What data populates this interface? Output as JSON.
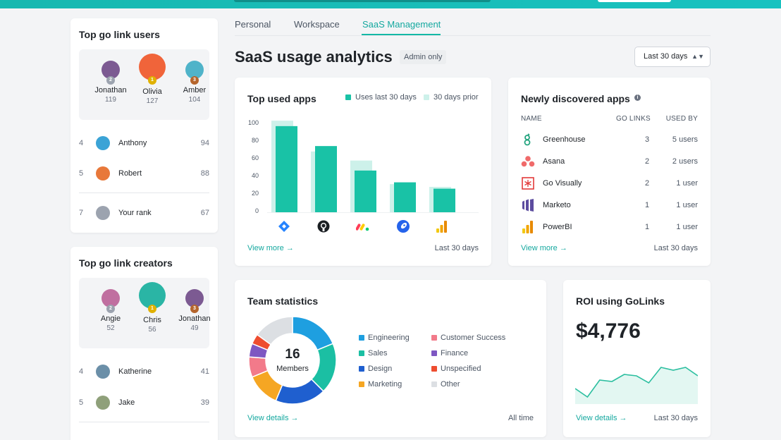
{
  "left": {
    "users": {
      "title": "Top go link users",
      "podium": [
        {
          "name": "Jonathan",
          "count": "119",
          "medal_color": "#9ca3af",
          "avatar_color": "#7c5a92"
        },
        {
          "name": "Olivia",
          "count": "127",
          "medal_color": "#e0b100",
          "avatar_color": "#f0643a"
        },
        {
          "name": "Amber",
          "count": "104",
          "medal_color": "#b5652c",
          "avatar_color": "#4fb3c9"
        }
      ],
      "rows": [
        {
          "rank": "4",
          "name": "Anthony",
          "count": "94",
          "avatar_color": "#3ba3d6"
        },
        {
          "rank": "5",
          "name": "Robert",
          "count": "88",
          "avatar_color": "#e8783a"
        },
        {
          "rank": "7",
          "name": "Your rank",
          "count": "67",
          "avatar_color": "#9ca3af"
        }
      ]
    },
    "creators": {
      "title": "Top go link creators",
      "podium": [
        {
          "name": "Angie",
          "count": "52",
          "medal_color": "#9ca3af",
          "avatar_color": "#c06fa0"
        },
        {
          "name": "Chris",
          "count": "56",
          "medal_color": "#e0b100",
          "avatar_color": "#2ab5a5"
        },
        {
          "name": "Jonathan",
          "count": "49",
          "medal_color": "#b5652c",
          "avatar_color": "#7c5a92"
        }
      ],
      "rows": [
        {
          "rank": "4",
          "name": "Katherine",
          "count": "41",
          "avatar_color": "#6b8fa8"
        },
        {
          "rank": "5",
          "name": "Jake",
          "count": "39",
          "avatar_color": "#8fa07a"
        }
      ]
    }
  },
  "tabs": [
    {
      "label": "Personal",
      "active": false
    },
    {
      "label": "Workspace",
      "active": false
    },
    {
      "label": "SaaS Management",
      "active": true
    }
  ],
  "header": {
    "title": "SaaS usage analytics",
    "badge": "Admin only",
    "period_select": "Last 30 days"
  },
  "top_apps": {
    "title": "Top used apps",
    "legend_current": "Uses last 30 days",
    "legend_prior": "30 days prior",
    "view_more": "View more →",
    "period": "Last 30 days",
    "colors": {
      "current": "#19c2a6",
      "prior": "#cdf1ea"
    },
    "app_icons": [
      "jira-icon",
      "github-icon",
      "monday-icon",
      "rocket-icon",
      "powerbi-icon"
    ]
  },
  "chart_data": {
    "type": "bar",
    "categories": [
      "Jira",
      "GitHub",
      "Monday",
      "Rocket",
      "PowerBI"
    ],
    "series": [
      {
        "name": "Uses last 30 days",
        "values": [
          95,
          73,
          46,
          33,
          26
        ]
      },
      {
        "name": "30 days prior",
        "values": [
          101,
          67,
          57,
          31,
          28
        ]
      }
    ],
    "yticks": [
      "0",
      "20",
      "40",
      "60",
      "80",
      "100"
    ],
    "ylim": [
      0,
      105
    ],
    "legend": "top-right",
    "grid": false
  },
  "discovered": {
    "title": "Newly discovered apps",
    "columns": {
      "name": "NAME",
      "go_links": "GO LINKS",
      "used_by": "USED BY"
    },
    "rows": [
      {
        "icon": "greenhouse-icon",
        "name": "Greenhouse",
        "links": "3",
        "used_by": "5 users"
      },
      {
        "icon": "asana-icon",
        "name": "Asana",
        "links": "2",
        "used_by": "2 users"
      },
      {
        "icon": "govisually-icon",
        "name": "Go Visually",
        "links": "2",
        "used_by": "1 user"
      },
      {
        "icon": "marketo-icon",
        "name": "Marketo",
        "links": "1",
        "used_by": "1 user"
      },
      {
        "icon": "powerbi-icon",
        "name": "PowerBI",
        "links": "1",
        "used_by": "1 user"
      }
    ],
    "view_more": "View more →",
    "period": "Last 30 days"
  },
  "team": {
    "title": "Team statistics",
    "center_value": "16",
    "center_label": "Members",
    "segments": [
      {
        "name": "Engineering",
        "color": "#1e9fe0",
        "value": 3
      },
      {
        "name": "Sales",
        "color": "#1bbfa3",
        "value": 3
      },
      {
        "name": "Design",
        "color": "#1f5fcf",
        "value": 3
      },
      {
        "name": "Marketing",
        "color": "#f5a623",
        "value": 2
      },
      {
        "name": "Customer Success",
        "color": "#f27a8a",
        "value": 1.2
      },
      {
        "name": "Finance",
        "color": "#7e57c2",
        "value": 0.8
      },
      {
        "name": "Unspecified",
        "color": "#ee4d30",
        "value": 0.6
      },
      {
        "name": "Other",
        "color": "#dcdfe3",
        "value": 2.4
      }
    ],
    "view_details": "View details →",
    "period": "All time"
  },
  "roi": {
    "title": "ROI using GoLinks",
    "value": "$4,776",
    "view_details": "View details →",
    "period": "Last 30 days",
    "trend": [
      22,
      10,
      34,
      32,
      42,
      40,
      30,
      52,
      48,
      52,
      40
    ]
  }
}
